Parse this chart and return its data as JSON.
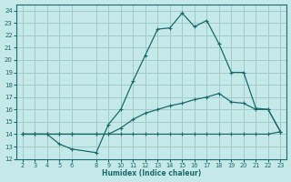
{
  "xlabel": "Humidex (Indice chaleur)",
  "bg_color": "#c5e8e8",
  "grid_color": "#a0cccc",
  "line_color": "#1a6b6b",
  "xlim": [
    1.5,
    23.5
  ],
  "ylim": [
    12,
    24.5
  ],
  "x_ticks": [
    2,
    3,
    4,
    5,
    6,
    8,
    9,
    10,
    11,
    12,
    13,
    14,
    15,
    16,
    17,
    18,
    19,
    20,
    21,
    22,
    23
  ],
  "y_ticks": [
    12,
    13,
    14,
    15,
    16,
    17,
    18,
    19,
    20,
    21,
    22,
    23,
    24
  ],
  "line1_x": [
    2,
    3,
    4,
    5,
    6,
    8,
    9,
    10,
    11,
    12,
    13,
    14,
    15,
    16,
    17,
    18,
    19,
    20,
    21,
    22,
    23
  ],
  "line1_y": [
    14.0,
    14.0,
    14.0,
    13.2,
    12.8,
    12.5,
    14.8,
    16.0,
    18.3,
    20.4,
    22.5,
    22.6,
    23.8,
    22.7,
    23.2,
    21.3,
    19.0,
    19.0,
    16.1,
    16.0,
    14.2
  ],
  "line2_x": [
    2,
    3,
    4,
    5,
    6,
    8,
    9,
    10,
    11,
    12,
    13,
    14,
    15,
    16,
    17,
    18,
    19,
    20,
    21,
    22,
    23
  ],
  "line2_y": [
    14.0,
    14.0,
    14.0,
    14.0,
    14.0,
    14.0,
    14.0,
    14.0,
    14.0,
    14.0,
    14.0,
    14.0,
    14.0,
    14.0,
    14.0,
    14.0,
    14.0,
    14.0,
    14.0,
    14.0,
    14.2
  ],
  "line3_x": [
    2,
    3,
    4,
    5,
    6,
    8,
    9,
    10,
    11,
    12,
    13,
    14,
    15,
    16,
    17,
    18,
    19,
    20,
    21,
    22,
    23
  ],
  "line3_y": [
    14.0,
    14.0,
    14.0,
    14.0,
    14.0,
    14.0,
    14.0,
    14.5,
    15.2,
    15.7,
    16.0,
    16.3,
    16.5,
    16.8,
    17.0,
    17.3,
    16.6,
    16.5,
    16.0,
    16.0,
    14.2
  ]
}
